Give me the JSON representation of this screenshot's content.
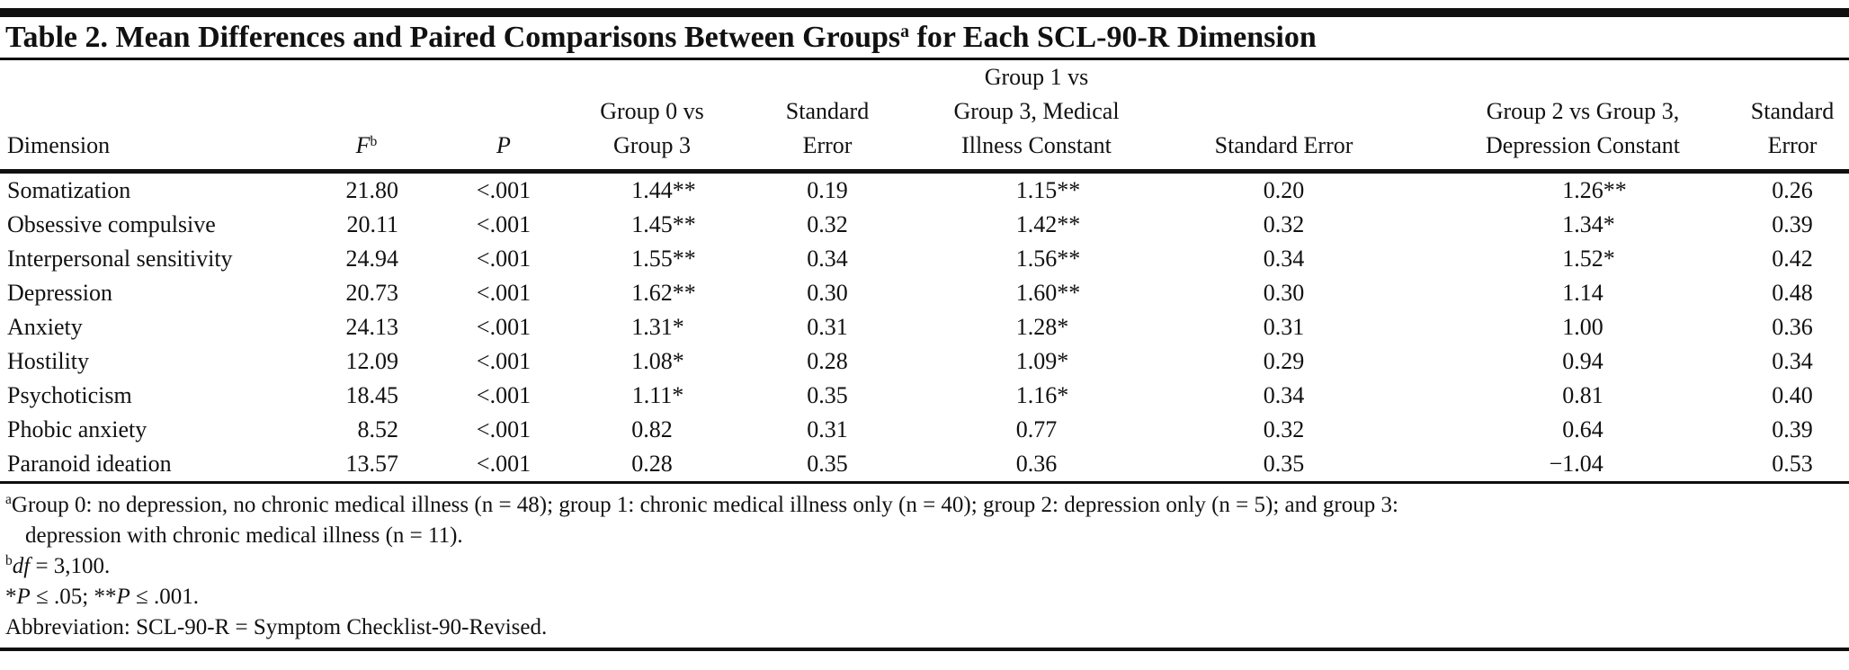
{
  "title": {
    "text": "Table 2. Mean Differences and Paired Comparisons Between Groups",
    "superscript": "a",
    "text_after": " for Each SCL-90-R Dimension"
  },
  "table": {
    "columns": [
      {
        "id": "dimension",
        "label": "Dimension"
      },
      {
        "id": "f_statistic",
        "label_italic": "F",
        "label_sup": "b"
      },
      {
        "id": "p_value",
        "label_italic": "P"
      },
      {
        "id": "group0_vs_group3",
        "label": "Group 0 vs\nGroup 3"
      },
      {
        "id": "standard_error_1",
        "label": "Standard\nError"
      },
      {
        "id": "group1_vs_group3",
        "label": "Group 1 vs\nGroup 3, Medical\nIllness Constant"
      },
      {
        "id": "standard_error_2",
        "label": "Standard Error"
      },
      {
        "id": "group2_vs_group3",
        "label": "Group 2 vs Group 3,\nDepression Constant"
      },
      {
        "id": "standard_error_3",
        "label": "Standard\nError"
      }
    ],
    "rows": [
      {
        "dimension": "Somatization",
        "F": "21.80",
        "P": "<.001",
        "group0_vs_group3": {
          "value": "1.44",
          "significance": "**"
        },
        "se1": "0.19",
        "group1_vs_group3": {
          "value": "1.15",
          "significance": "**"
        },
        "se2": "0.20",
        "group2_vs_group3": {
          "value": "1.26",
          "significance": "**"
        },
        "se3": "0.26"
      },
      {
        "dimension": "Obsessive compulsive",
        "F": "20.11",
        "P": "<.001",
        "group0_vs_group3": {
          "value": "1.45",
          "significance": "**"
        },
        "se1": "0.32",
        "group1_vs_group3": {
          "value": "1.42",
          "significance": "**"
        },
        "se2": "0.32",
        "group2_vs_group3": {
          "value": "1.34",
          "significance": "*"
        },
        "se3": "0.39"
      },
      {
        "dimension": "Interpersonal sensitivity",
        "F": "24.94",
        "P": "<.001",
        "group0_vs_group3": {
          "value": "1.55",
          "significance": "**"
        },
        "se1": "0.34",
        "group1_vs_group3": {
          "value": "1.56",
          "significance": "**"
        },
        "se2": "0.34",
        "group2_vs_group3": {
          "value": "1.52",
          "significance": "*"
        },
        "se3": "0.42"
      },
      {
        "dimension": "Depression",
        "F": "20.73",
        "P": "<.001",
        "group0_vs_group3": {
          "value": "1.62",
          "significance": "**"
        },
        "se1": "0.30",
        "group1_vs_group3": {
          "value": "1.60",
          "significance": "**"
        },
        "se2": "0.30",
        "group2_vs_group3": {
          "value": "1.14",
          "significance": ""
        },
        "se3": "0.48"
      },
      {
        "dimension": "Anxiety",
        "F": "24.13",
        "P": "<.001",
        "group0_vs_group3": {
          "value": "1.31",
          "significance": "*"
        },
        "se1": "0.31",
        "group1_vs_group3": {
          "value": "1.28",
          "significance": "*"
        },
        "se2": "0.31",
        "group2_vs_group3": {
          "value": "1.00",
          "significance": ""
        },
        "se3": "0.36"
      },
      {
        "dimension": "Hostility",
        "F": "12.09",
        "P": "<.001",
        "group0_vs_group3": {
          "value": "1.08",
          "significance": "*"
        },
        "se1": "0.28",
        "group1_vs_group3": {
          "value": "1.09",
          "significance": "*"
        },
        "se2": "0.29",
        "group2_vs_group3": {
          "value": "0.94",
          "significance": ""
        },
        "se3": "0.34"
      },
      {
        "dimension": "Psychoticism",
        "F": "18.45",
        "P": "<.001",
        "group0_vs_group3": {
          "value": "1.11",
          "significance": "*"
        },
        "se1": "0.35",
        "group1_vs_group3": {
          "value": "1.16",
          "significance": "*"
        },
        "se2": "0.34",
        "group2_vs_group3": {
          "value": "0.81",
          "significance": ""
        },
        "se3": "0.40"
      },
      {
        "dimension": "Phobic anxiety",
        "F": "8.52",
        "P": "<.001",
        "group0_vs_group3": {
          "value": "0.82",
          "significance": ""
        },
        "se1": "0.31",
        "group1_vs_group3": {
          "value": "0.77",
          "significance": ""
        },
        "se2": "0.32",
        "group2_vs_group3": {
          "value": "0.64",
          "significance": ""
        },
        "se3": "0.39"
      },
      {
        "dimension": "Paranoid ideation",
        "F": "13.57",
        "P": "<.001",
        "group0_vs_group3": {
          "value": "0.28",
          "significance": ""
        },
        "se1": "0.35",
        "group1_vs_group3": {
          "value": "0.36",
          "significance": ""
        },
        "se2": "0.35",
        "group2_vs_group3": {
          "value": "−1.04",
          "significance": ""
        },
        "se3": "0.53"
      }
    ]
  },
  "footnotes": {
    "a": {
      "sup": "a",
      "text": "Group 0: no depression, no chronic medical illness (n = 48); group 1: chronic medical illness only (n = 40); group 2: depression only (n = 5); and group 3:\ndepression with chronic medical illness (n = 11)."
    },
    "b": {
      "sup": "b",
      "italic": "df",
      "text": " = 3,100."
    },
    "significance": {
      "star1": "*",
      "p1": "P",
      "t1": " ≤ .05; ",
      "star2": "**",
      "p2": "P",
      "t2": " ≤ .001."
    },
    "abbreviation": "Abbreviation: SCL-90-R = Symptom Checklist-90-Revised."
  }
}
